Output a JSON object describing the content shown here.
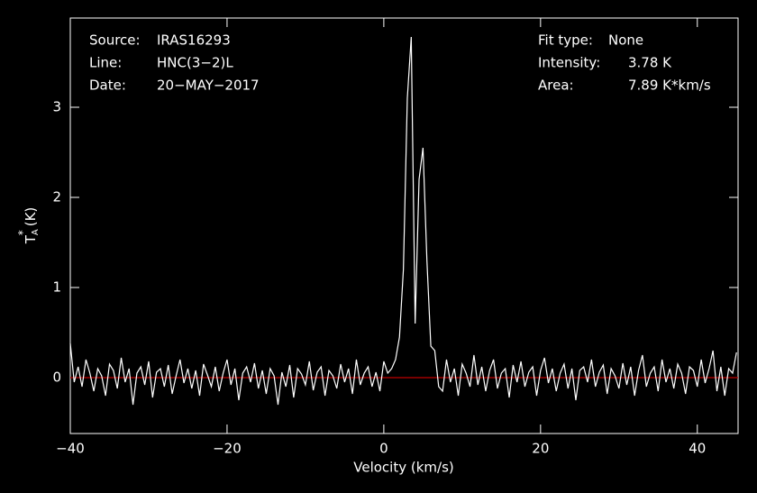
{
  "chart_data": {
    "type": "line",
    "x_label": "Velocity (km/s)",
    "y_label": {
      "base": "T",
      "sub": "A",
      "sup": "*",
      "unit": "(K)"
    },
    "info_left": [
      {
        "label": "Source:",
        "value": "IRAS16293"
      },
      {
        "label": "Line:",
        "value": "HNC(3−2)L"
      },
      {
        "label": "Date:",
        "value": "20−MAY−2017"
      }
    ],
    "info_right": [
      {
        "label": "Fit type:",
        "value": "None"
      },
      {
        "label": "Intensity:",
        "value": "3.78 K"
      },
      {
        "label": "Area:",
        "value": "7.89 K*km/s"
      }
    ],
    "xlim": [
      -40,
      45.2
    ],
    "ylim": [
      -0.62,
      3.99
    ],
    "xticks": [
      {
        "value": -40,
        "label": "−40"
      },
      {
        "value": -20,
        "label": "−20"
      },
      0,
      20,
      40
    ],
    "yticks": [
      0,
      1,
      2,
      3
    ],
    "baseline": 0,
    "baseline_color": "#c00000",
    "color": "#ffffff",
    "x": [
      -40,
      -39.5,
      -39,
      -38.5,
      -38,
      -37.5,
      -37,
      -36.5,
      -36,
      -35.5,
      -35,
      -34.5,
      -34,
      -33.5,
      -33,
      -32.5,
      -32,
      -31.5,
      -31,
      -30.5,
      -30,
      -29.5,
      -29,
      -28.5,
      -28,
      -27.5,
      -27,
      -26.5,
      -26,
      -25.5,
      -25,
      -24.5,
      -24,
      -23.5,
      -23,
      -22.5,
      -22,
      -21.5,
      -21,
      -20.5,
      -20,
      -19.5,
      -19,
      -18.5,
      -18,
      -17.5,
      -17,
      -16.5,
      -16,
      -15.5,
      -15,
      -14.5,
      -14,
      -13.5,
      -13,
      -12.5,
      -12,
      -11.5,
      -11,
      -10.5,
      -10,
      -9.5,
      -9,
      -8.5,
      -8,
      -7.5,
      -7,
      -6.5,
      -6,
      -5.5,
      -5,
      -4.5,
      -4,
      -3.5,
      -3,
      -2.5,
      -2,
      -1.5,
      -1,
      -0.5,
      0,
      0.5,
      1,
      1.5,
      2,
      2.5,
      3,
      3.5,
      4,
      4.5,
      5,
      5.5,
      6,
      6.5,
      7,
      7.5,
      8,
      8.5,
      9,
      9.5,
      10,
      10.5,
      11,
      11.5,
      12,
      12.5,
      13,
      13.5,
      14,
      14.5,
      15,
      15.5,
      16,
      16.5,
      17,
      17.5,
      18,
      18.5,
      19,
      19.5,
      20,
      20.5,
      21,
      21.5,
      22,
      22.5,
      23,
      23.5,
      24,
      24.5,
      25,
      25.5,
      26,
      26.5,
      27,
      27.5,
      28,
      28.5,
      29,
      29.5,
      30,
      30.5,
      31,
      31.5,
      32,
      32.5,
      33,
      33.5,
      34,
      34.5,
      35,
      35.5,
      36,
      36.5,
      37,
      37.5,
      38,
      38.5,
      39,
      39.5,
      40,
      40.5,
      41,
      41.5,
      42,
      42.5,
      43,
      43.5,
      44,
      44.5,
      45
    ],
    "values": [
      0.38,
      -0.05,
      0.12,
      -0.1,
      0.2,
      0.05,
      -0.15,
      0.1,
      0.02,
      -0.2,
      0.15,
      0.08,
      -0.12,
      0.22,
      -0.05,
      0.1,
      -0.3,
      0.05,
      0.12,
      -0.08,
      0.18,
      -0.22,
      0.06,
      0.1,
      -0.1,
      0.14,
      -0.18,
      0.02,
      0.2,
      -0.06,
      0.1,
      -0.12,
      0.08,
      -0.2,
      0.15,
      0.03,
      -0.1,
      0.12,
      -0.15,
      0.05,
      0.2,
      -0.08,
      0.1,
      -0.25,
      0.05,
      0.12,
      -0.05,
      0.16,
      -0.12,
      0.08,
      -0.18,
      0.1,
      0.02,
      -0.3,
      0.06,
      -0.1,
      0.14,
      -0.22,
      0.1,
      0.04,
      -0.08,
      0.18,
      -0.14,
      0.06,
      0.12,
      -0.2,
      0.08,
      0.02,
      -0.12,
      0.15,
      -0.05,
      0.1,
      -0.18,
      0.2,
      -0.08,
      0.05,
      0.12,
      -0.1,
      0.06,
      -0.15,
      0.18,
      0.05,
      0.1,
      0.2,
      0.45,
      1.2,
      3.1,
      3.78,
      0.6,
      2.2,
      2.55,
      1.3,
      0.35,
      0.3,
      -0.1,
      -0.15,
      0.2,
      -0.05,
      0.1,
      -0.2,
      0.15,
      0.05,
      -0.1,
      0.25,
      -0.08,
      0.12,
      -0.15,
      0.08,
      0.2,
      -0.12,
      0.05,
      0.1,
      -0.22,
      0.14,
      -0.05,
      0.18,
      -0.1,
      0.06,
      0.12,
      -0.2,
      0.08,
      0.22,
      -0.06,
      0.1,
      -0.15,
      0.05,
      0.15,
      -0.12,
      0.1,
      -0.25,
      0.08,
      0.12,
      -0.05,
      0.2,
      -0.1,
      0.06,
      0.14,
      -0.18,
      0.1,
      0.02,
      -0.12,
      0.16,
      -0.08,
      0.12,
      -0.2,
      0.08,
      0.25,
      -0.1,
      0.05,
      0.12,
      -0.15,
      0.2,
      -0.05,
      0.1,
      -0.12,
      0.15,
      0.05,
      -0.18,
      0.12,
      0.08,
      -0.1,
      0.2,
      -0.06,
      0.1,
      0.3,
      -0.15,
      0.12,
      -0.2,
      0.1,
      0.05,
      0.28
    ]
  }
}
